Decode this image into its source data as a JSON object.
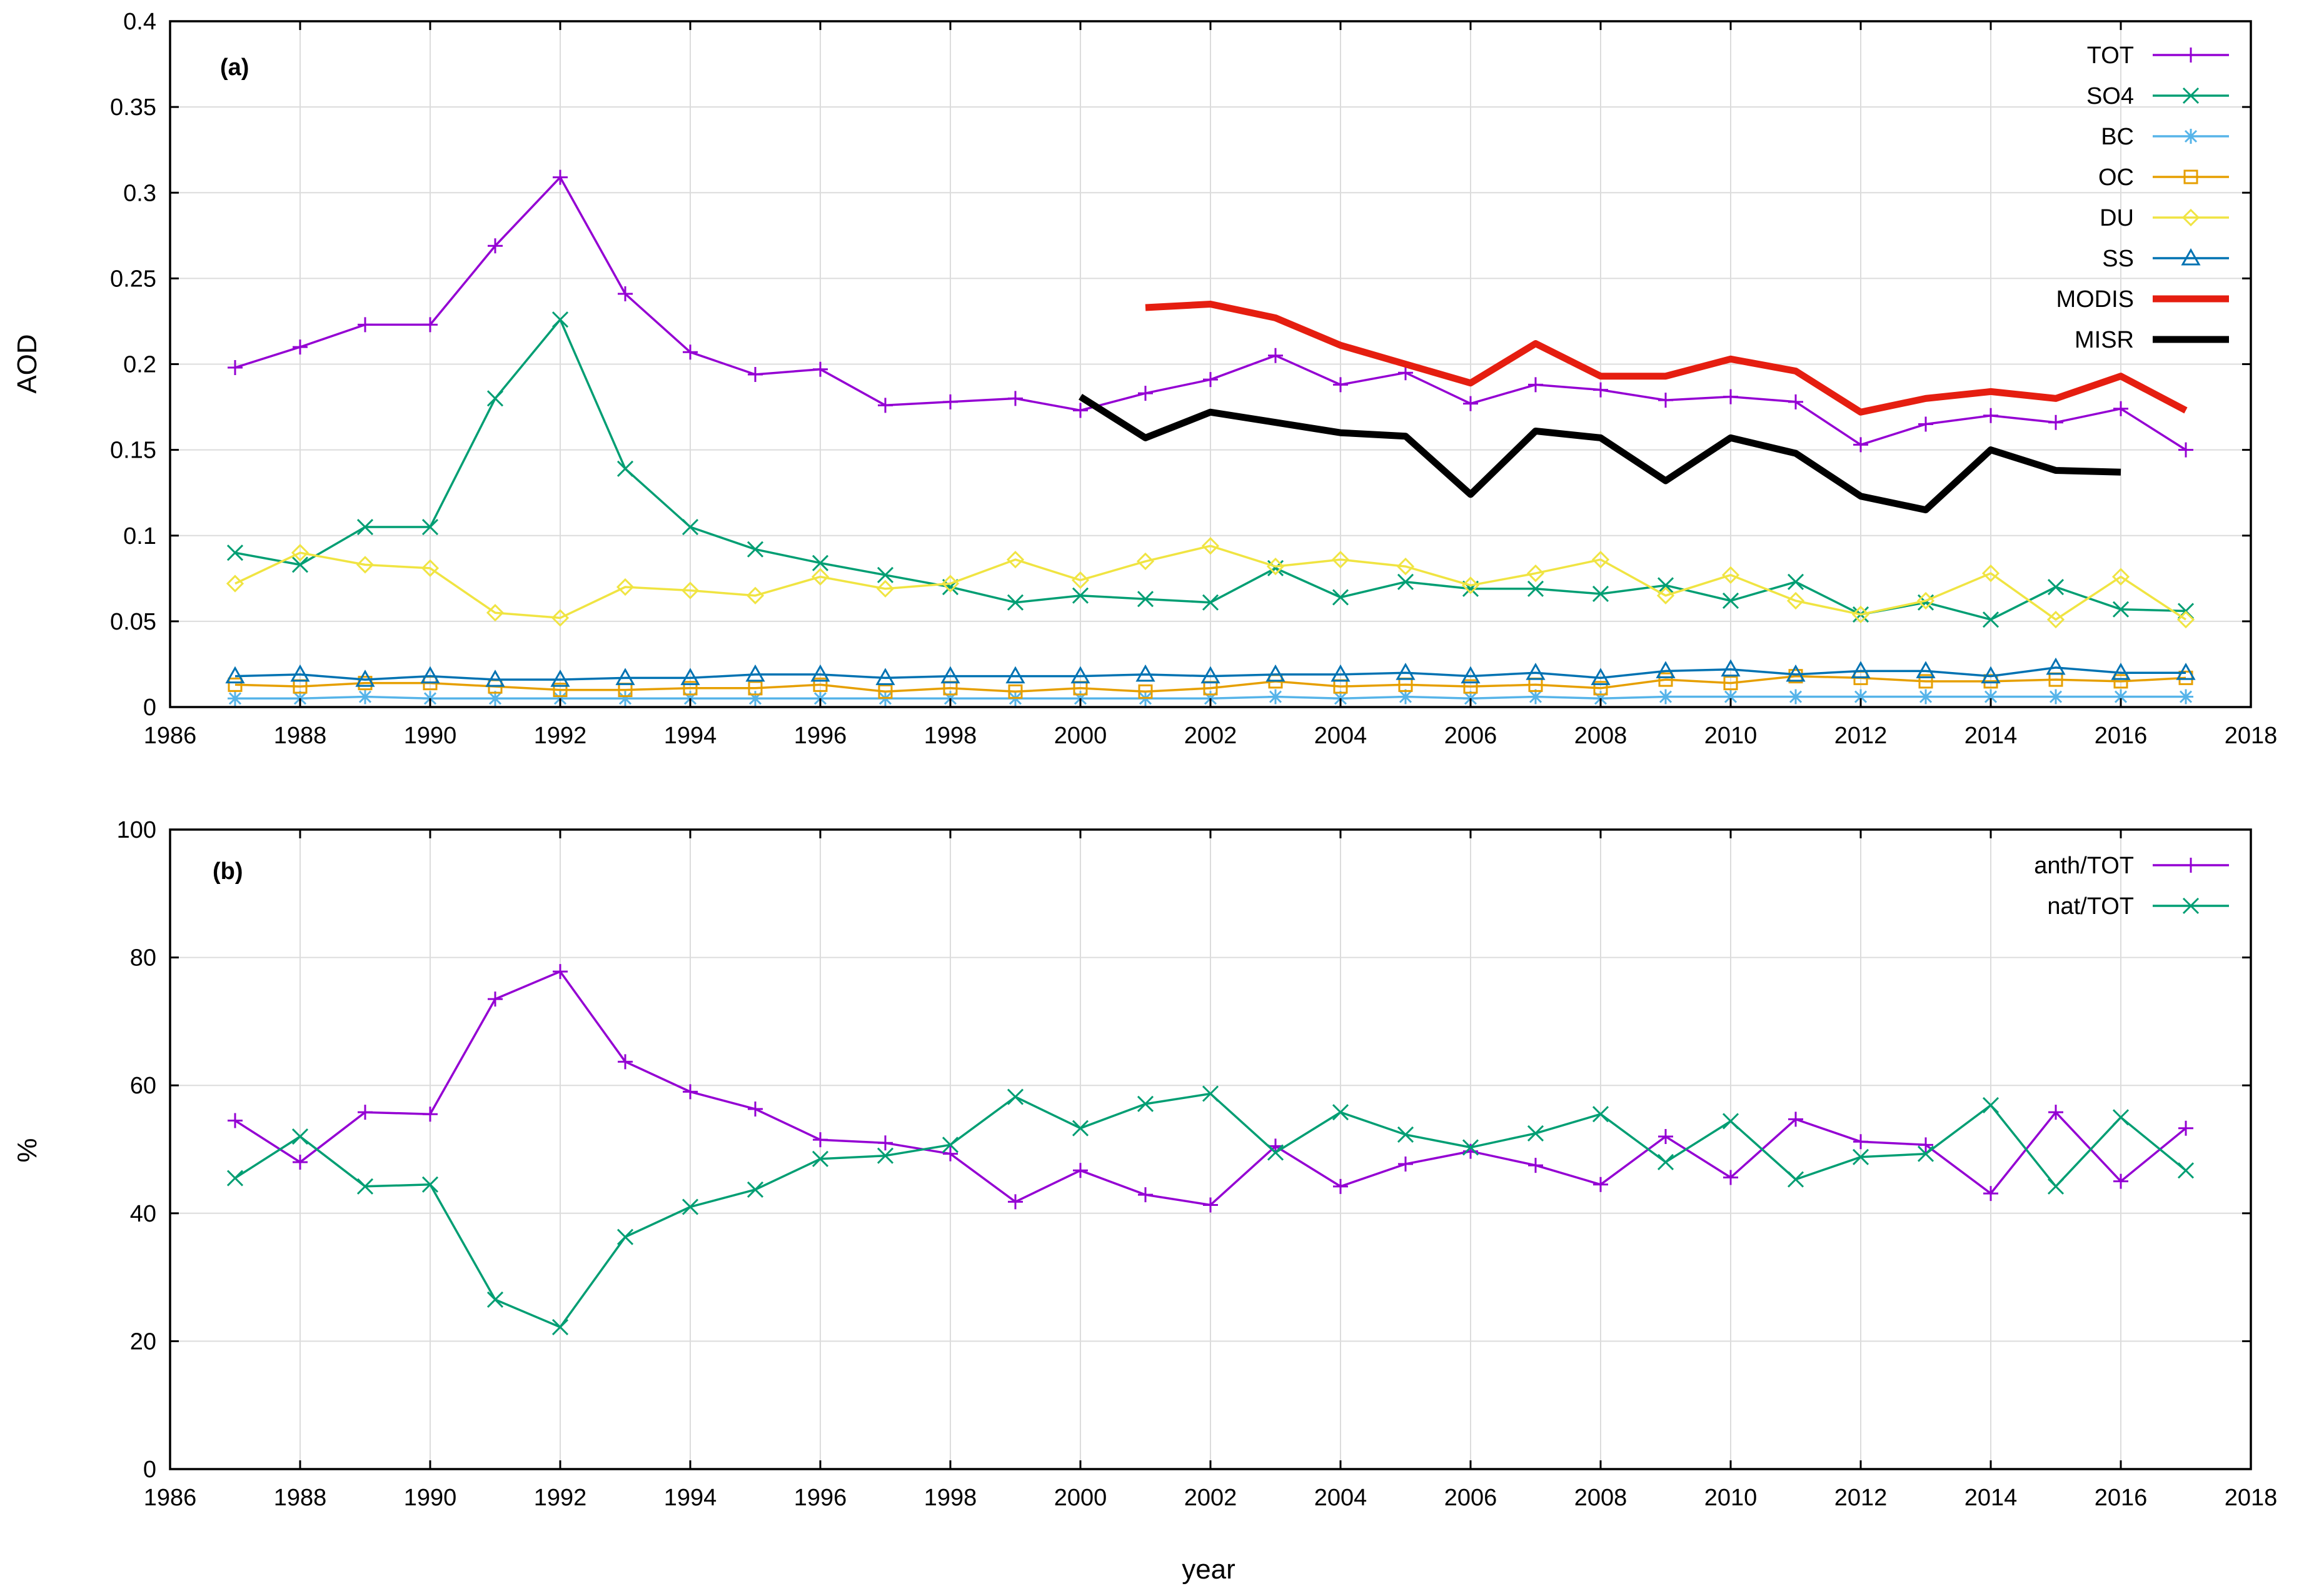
{
  "chart_data": [
    {
      "panel": "(a)",
      "type": "line",
      "ylabel": "AOD",
      "xlabel": "",
      "xlim": [
        1986,
        2018
      ],
      "ylim": [
        0,
        0.4
      ],
      "xticks": [
        "1986",
        "1988",
        "1990",
        "1992",
        "1994",
        "1996",
        "1998",
        "2000",
        "2002",
        "2004",
        "2006",
        "2008",
        "2010",
        "2012",
        "2014",
        "2016",
        "2018"
      ],
      "yticks": [
        "0",
        "0.05",
        "0.1",
        "0.15",
        "0.2",
        "0.25",
        "0.3",
        "0.35",
        "0.4"
      ],
      "grid": true,
      "legend_position": "top-right",
      "series": [
        {
          "name": "TOT",
          "color": "#9400d3",
          "marker": "plus",
          "x_start": 1987,
          "values": [
            0.198,
            0.21,
            0.223,
            0.223,
            0.269,
            0.309,
            0.241,
            0.207,
            0.194,
            0.197,
            0.176,
            0.178,
            0.18,
            0.173,
            0.183,
            0.191,
            0.205,
            0.188,
            0.195,
            0.177,
            0.188,
            0.185,
            0.179,
            0.181,
            0.178,
            0.153,
            0.165,
            0.17,
            0.166,
            0.174,
            0.15
          ]
        },
        {
          "name": "SO4",
          "color": "#009e73",
          "marker": "cross",
          "x_start": 1987,
          "values": [
            0.09,
            0.083,
            0.105,
            0.105,
            0.18,
            0.226,
            0.139,
            0.105,
            0.092,
            0.084,
            0.077,
            0.07,
            0.061,
            0.065,
            0.063,
            0.061,
            0.081,
            0.064,
            0.073,
            0.069,
            0.069,
            0.066,
            0.071,
            0.062,
            0.073,
            0.054,
            0.061,
            0.051,
            0.07,
            0.057,
            0.056
          ]
        },
        {
          "name": "BC",
          "color": "#56b4e9",
          "marker": "star",
          "x_start": 1987,
          "values": [
            0.005,
            0.005,
            0.006,
            0.005,
            0.005,
            0.005,
            0.005,
            0.005,
            0.005,
            0.005,
            0.005,
            0.005,
            0.005,
            0.005,
            0.005,
            0.005,
            0.006,
            0.005,
            0.006,
            0.005,
            0.006,
            0.005,
            0.006,
            0.006,
            0.006,
            0.006,
            0.006,
            0.006,
            0.006,
            0.006,
            0.006
          ]
        },
        {
          "name": "OC",
          "color": "#e69f00",
          "marker": "square",
          "x_start": 1987,
          "values": [
            0.013,
            0.012,
            0.014,
            0.014,
            0.012,
            0.01,
            0.01,
            0.011,
            0.011,
            0.013,
            0.009,
            0.011,
            0.009,
            0.011,
            0.009,
            0.011,
            0.015,
            0.012,
            0.013,
            0.012,
            0.013,
            0.011,
            0.016,
            0.014,
            0.018,
            0.017,
            0.015,
            0.015,
            0.016,
            0.015,
            0.017
          ]
        },
        {
          "name": "DU",
          "color": "#f0e442",
          "marker": "diamond",
          "x_start": 1987,
          "values": [
            0.072,
            0.09,
            0.083,
            0.081,
            0.055,
            0.052,
            0.07,
            0.068,
            0.065,
            0.076,
            0.069,
            0.072,
            0.086,
            0.074,
            0.085,
            0.094,
            0.082,
            0.086,
            0.082,
            0.071,
            0.078,
            0.086,
            0.065,
            0.077,
            0.062,
            0.054,
            0.062,
            0.078,
            0.051,
            0.076,
            0.051
          ]
        },
        {
          "name": "SS",
          "color": "#0072b2",
          "marker": "triangle",
          "x_start": 1987,
          "values": [
            0.018,
            0.019,
            0.016,
            0.018,
            0.016,
            0.016,
            0.017,
            0.017,
            0.019,
            0.019,
            0.017,
            0.018,
            0.018,
            0.018,
            0.019,
            0.018,
            0.019,
            0.019,
            0.02,
            0.018,
            0.02,
            0.017,
            0.021,
            0.022,
            0.019,
            0.021,
            0.021,
            0.018,
            0.023,
            0.02,
            0.02
          ]
        },
        {
          "name": "MODIS",
          "color": "#e51e10",
          "marker": "none",
          "thick": true,
          "x_start": 2001,
          "values": [
            0.233,
            0.235,
            0.227,
            0.211,
            0.2,
            0.189,
            0.212,
            0.193,
            0.193,
            0.203,
            0.196,
            0.172,
            0.18,
            0.184,
            0.18,
            0.193,
            0.173
          ]
        },
        {
          "name": "MISR",
          "color": "#000000",
          "marker": "none",
          "thick": true,
          "x_start": 2000,
          "values": [
            0.181,
            0.157,
            0.172,
            0.166,
            0.16,
            0.158,
            0.124,
            0.161,
            0.157,
            0.132,
            0.157,
            0.148,
            0.123,
            0.115,
            0.15,
            0.138,
            0.137
          ]
        }
      ]
    },
    {
      "panel": "(b)",
      "type": "line",
      "ylabel": "%",
      "xlabel": "year",
      "xlim": [
        1986,
        2018
      ],
      "ylim": [
        0,
        100
      ],
      "xticks": [
        "1986",
        "1988",
        "1990",
        "1992",
        "1994",
        "1996",
        "1998",
        "2000",
        "2002",
        "2004",
        "2006",
        "2008",
        "2010",
        "2012",
        "2014",
        "2016",
        "2018"
      ],
      "yticks": [
        "0",
        "20",
        "40",
        "60",
        "80",
        "100"
      ],
      "grid": true,
      "legend_position": "top-right",
      "series": [
        {
          "name": "anth/TOT",
          "color": "#9400d3",
          "marker": "plus",
          "x_start": 1987,
          "values": [
            54.5,
            48.0,
            55.8,
            55.5,
            73.5,
            77.8,
            63.7,
            59.0,
            56.3,
            51.5,
            51.0,
            49.3,
            41.8,
            46.7,
            42.9,
            41.3,
            50.5,
            44.2,
            47.7,
            49.7,
            47.5,
            44.5,
            52.0,
            45.6,
            54.7,
            51.2,
            50.7,
            43.1,
            55.8,
            45.0,
            53.3
          ]
        },
        {
          "name": "nat/TOT",
          "color": "#009e73",
          "marker": "cross",
          "x_start": 1987,
          "values": [
            45.5,
            52.0,
            44.2,
            44.5,
            26.5,
            22.2,
            36.3,
            41.0,
            43.7,
            48.5,
            49.0,
            50.7,
            58.2,
            53.3,
            57.1,
            58.7,
            49.5,
            55.8,
            52.3,
            50.3,
            52.5,
            55.5,
            48.0,
            54.4,
            45.3,
            48.8,
            49.3,
            56.9,
            44.2,
            55.0,
            46.7
          ]
        }
      ]
    }
  ]
}
